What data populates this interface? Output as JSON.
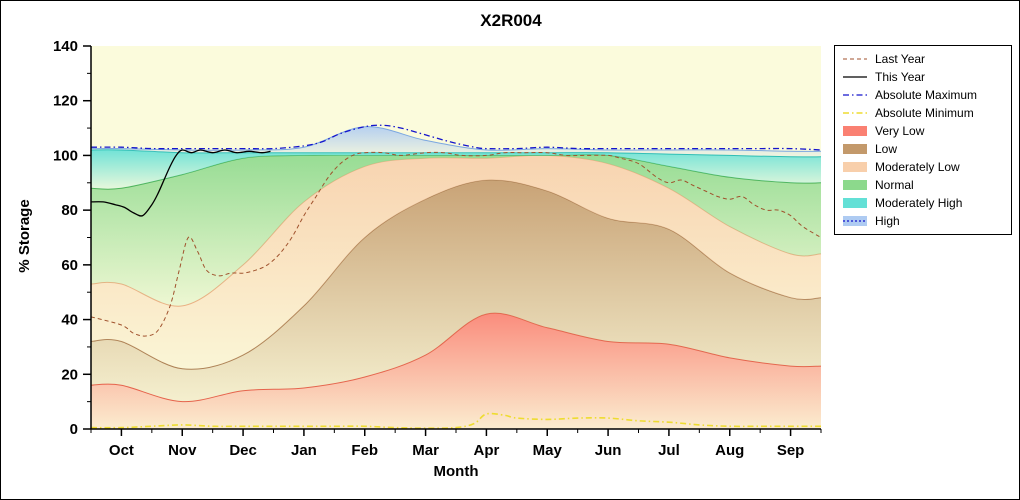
{
  "chart_data": {
    "type": "area",
    "title": "X2R004",
    "xlabel": "Month",
    "ylabel": "% Storage",
    "x_range": [
      -0.5,
      11.5
    ],
    "y_range": [
      0,
      140
    ],
    "y_ticks": [
      0,
      20,
      40,
      60,
      80,
      100,
      120,
      140
    ],
    "months": [
      "Oct",
      "Nov",
      "Dec",
      "Jan",
      "Feb",
      "Mar",
      "Apr",
      "May",
      "Jun",
      "Jul",
      "Aug",
      "Sep"
    ],
    "colors": {
      "plot_bg": "#FBFBDC",
      "axis": "#000000"
    },
    "bands": [
      {
        "name": "very-low",
        "label": "Very Low",
        "fill": "#FA8072",
        "line_color": "#E8604A",
        "top": [
          16,
          10,
          14,
          15,
          19,
          27,
          42,
          37,
          32,
          31,
          26,
          23
        ]
      },
      {
        "name": "low",
        "label": "Low",
        "fill": "#C3996B",
        "line_color": "#A87C4F",
        "top": [
          32,
          22,
          27,
          45,
          70,
          84,
          91,
          87,
          77,
          73,
          57,
          48
        ]
      },
      {
        "name": "moderately-low",
        "label": "Moderately Low",
        "fill": "#F8CFAB",
        "line_color": "#EFAF84",
        "top": [
          53,
          45,
          60,
          83,
          96,
          99,
          99,
          100,
          97,
          88,
          74,
          64
        ]
      },
      {
        "name": "normal",
        "label": "Normal",
        "fill": "#8CD98C",
        "line_color": "#4CAF50",
        "top": [
          88,
          93,
          99,
          100,
          100,
          100,
          100,
          100,
          100,
          96,
          92,
          90
        ]
      },
      {
        "name": "moderately-high",
        "label": "Moderately High",
        "fill": "#63E0D6",
        "line_color": "#25BDB0",
        "top": [
          102,
          101,
          101,
          101,
          101,
          101,
          101,
          101,
          101,
          100.5,
          100,
          99.5
        ]
      },
      {
        "name": "high",
        "label": "High",
        "fill": "#AECBF2",
        "line_color": "#7BA7E0",
        "top": [
          102.5,
          102,
          102,
          103,
          110.5,
          105.5,
          102,
          102.5,
          102,
          102,
          102,
          101.5
        ]
      }
    ],
    "lines": [
      {
        "name": "absolute-maximum",
        "label": "Absolute Maximum",
        "color": "#1414CC",
        "dash": "6 3 1.5 3",
        "width": 1.3,
        "x": [
          -0.5,
          0,
          0.5,
          1,
          1.5,
          2,
          2.5,
          3,
          3.3,
          3.6,
          4,
          4.3,
          4.6,
          5,
          5.4,
          5.8,
          6,
          6.5,
          7,
          7.5,
          8,
          8.5,
          9,
          9.5,
          10,
          10.5,
          11,
          11.5
        ],
        "y": [
          103,
          103,
          102.5,
          102.5,
          102.5,
          102.5,
          102.5,
          103.5,
          105,
          108,
          110.5,
          111,
          110,
          107.5,
          105,
          103,
          102.5,
          102.5,
          103,
          102.5,
          102.5,
          102.5,
          102.5,
          102.5,
          102.5,
          102.5,
          102.5,
          102
        ]
      },
      {
        "name": "absolute-minimum",
        "label": "Absolute Minimum",
        "color": "#EEDC30",
        "dash": "6 3 1.5 3",
        "width": 1.6,
        "x": [
          -0.5,
          0,
          0.5,
          1,
          1.5,
          2,
          2.5,
          3,
          3.5,
          4,
          4.5,
          5,
          5.5,
          5.8,
          6,
          6.3,
          6.5,
          7,
          7.5,
          8,
          8.5,
          9,
          9.5,
          10,
          10.5,
          11,
          11.5
        ],
        "y": [
          0.5,
          0.5,
          1,
          1.5,
          1,
          1,
          1,
          1,
          1,
          1,
          0.5,
          0.3,
          0.5,
          2,
          5.5,
          5,
          4,
          3.5,
          4,
          4,
          3,
          2.5,
          1.5,
          1,
          1,
          1,
          1
        ]
      },
      {
        "name": "last-year",
        "label": "Last Year",
        "color": "#A0522D",
        "dash": "4 3",
        "width": 1,
        "x": [
          -0.5,
          0,
          0.2,
          0.4,
          0.6,
          0.8,
          0.95,
          1.1,
          1.25,
          1.4,
          1.6,
          1.8,
          2,
          2.2,
          2.4,
          2.6,
          2.8,
          3,
          3.2,
          3.4,
          3.6,
          3.8,
          4,
          4.3,
          4.6,
          5,
          5.3,
          5.6,
          6,
          6.3,
          6.6,
          7,
          7.3,
          7.6,
          8,
          8.2,
          8.5,
          8.8,
          9,
          9.2,
          9.4,
          9.6,
          9.8,
          10,
          10.2,
          10.4,
          10.6,
          10.8,
          11,
          11.2,
          11.5
        ],
        "y": [
          41,
          38,
          35,
          34,
          36,
          45,
          58,
          70,
          65,
          58,
          56,
          57,
          57,
          58,
          60,
          64,
          70,
          78,
          85,
          92,
          97,
          100,
          101,
          101,
          100,
          101,
          101,
          100,
          100,
          101,
          101,
          101,
          100,
          100,
          100,
          99,
          97,
          92,
          90,
          91,
          89,
          87,
          85,
          84,
          85,
          82,
          80,
          80,
          78,
          74,
          70
        ]
      },
      {
        "name": "this-year",
        "label": "This Year",
        "color": "#000000",
        "dash": "",
        "width": 1.3,
        "x": [
          -0.5,
          -0.3,
          -0.1,
          0.05,
          0.2,
          0.35,
          0.5,
          0.6,
          0.7,
          0.8,
          0.9,
          1,
          1.15,
          1.3,
          1.5,
          1.7,
          1.9,
          2.1,
          2.3,
          2.45
        ],
        "y": [
          83,
          83,
          82,
          81,
          79,
          78,
          82,
          86,
          91,
          96,
          100,
          102,
          101,
          102,
          101,
          102,
          101,
          101.5,
          101,
          101.5
        ]
      }
    ]
  },
  "legend": {
    "items": [
      {
        "label": "Last Year",
        "type": "line",
        "color": "#A0522D",
        "dash": "4 3",
        "width": 1
      },
      {
        "label": "This Year",
        "type": "line",
        "color": "#000000",
        "dash": "",
        "width": 1.3
      },
      {
        "label": "Absolute Maximum",
        "type": "line",
        "color": "#1414CC",
        "dash": "6 3 1.5 3",
        "width": 1.3
      },
      {
        "label": "Absolute Minimum",
        "type": "line",
        "color": "#EEDC30",
        "dash": "6 3 1.5 3",
        "width": 1.6
      },
      {
        "label": "Very Low",
        "type": "box",
        "color": "#FA8072"
      },
      {
        "label": "Low",
        "type": "box",
        "color": "#C3996B"
      },
      {
        "label": "Moderately Low",
        "type": "box",
        "color": "#F8CFAB"
      },
      {
        "label": "Normal",
        "type": "box",
        "color": "#8CD98C"
      },
      {
        "label": "Moderately High",
        "type": "box",
        "color": "#63E0D6"
      },
      {
        "label": "High",
        "type": "box",
        "color": "#AECBF2",
        "line": {
          "color": "#1414CC",
          "dash": "2 2"
        }
      }
    ]
  }
}
